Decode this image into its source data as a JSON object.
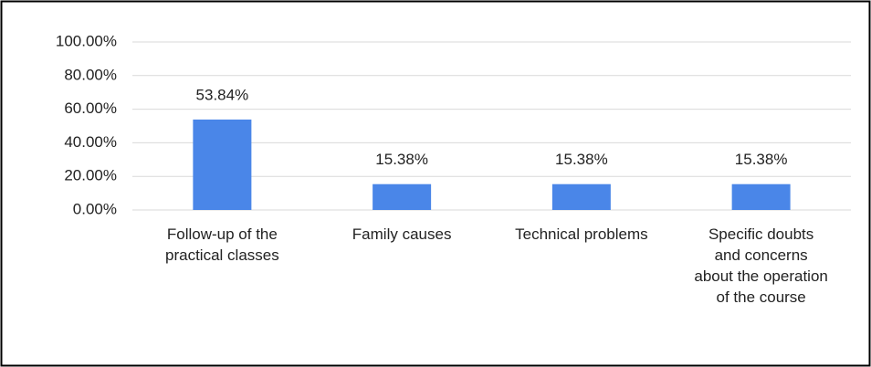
{
  "chart_data": {
    "type": "bar",
    "categories": [
      "Follow-up of the practical classes",
      "Family causes",
      "Technical problems",
      "Specific doubts and concerns about the operation of the course"
    ],
    "values": [
      53.84,
      15.38,
      15.38,
      15.38
    ],
    "value_labels": [
      "53.84%",
      "15.38%",
      "15.38%",
      "15.38%"
    ],
    "color": "#4a86e8",
    "ylim": [
      0,
      100
    ],
    "yticks": [
      {
        "value": 0,
        "label": "0.00%"
      },
      {
        "value": 20,
        "label": "20.00%"
      },
      {
        "value": 40,
        "label": "40.00%"
      },
      {
        "value": 60,
        "label": "60.00%"
      },
      {
        "value": 80,
        "label": "80.00%"
      },
      {
        "value": 100,
        "label": "100.00%"
      }
    ],
    "grid": true
  }
}
